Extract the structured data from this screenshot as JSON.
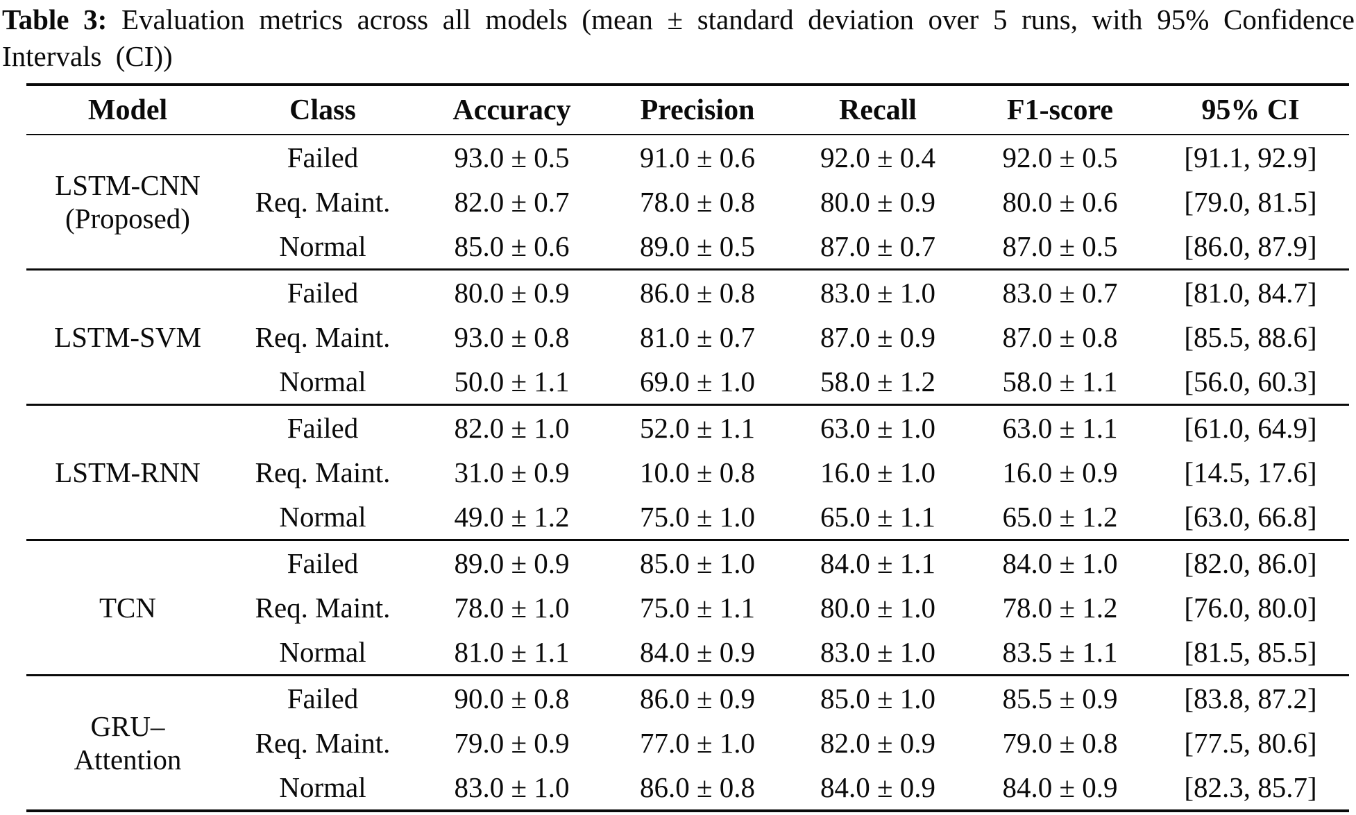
{
  "caption": {
    "label": "Table 3:",
    "text": "Evaluation metrics across all models (mean ± standard deviation over 5 runs, with 95% Confidence Intervals (CI))"
  },
  "table": {
    "columns": [
      "Model",
      "Class",
      "Accuracy",
      "Precision",
      "Recall",
      "F1-score",
      "95% CI"
    ],
    "row_fields": [
      "class",
      "accuracy",
      "precision",
      "recall",
      "f1",
      "ci"
    ],
    "groups": [
      {
        "model_lines": [
          "LSTM-CNN",
          "(Proposed)"
        ],
        "rows": [
          {
            "class": "Failed",
            "accuracy": "93.0 ± 0.5",
            "precision": "91.0 ± 0.6",
            "recall": "92.0 ± 0.4",
            "f1": "92.0 ± 0.5",
            "ci": "[91.1, 92.9]"
          },
          {
            "class": "Req. Maint.",
            "accuracy": "82.0 ± 0.7",
            "precision": "78.0 ± 0.8",
            "recall": "80.0 ± 0.9",
            "f1": "80.0 ± 0.6",
            "ci": "[79.0, 81.5]"
          },
          {
            "class": "Normal",
            "accuracy": "85.0 ± 0.6",
            "precision": "89.0 ± 0.5",
            "recall": "87.0 ± 0.7",
            "f1": "87.0 ± 0.5",
            "ci": "[86.0, 87.9]"
          }
        ]
      },
      {
        "model_lines": [
          "LSTM-SVM"
        ],
        "rows": [
          {
            "class": "Failed",
            "accuracy": "80.0 ± 0.9",
            "precision": "86.0 ± 0.8",
            "recall": "83.0 ± 1.0",
            "f1": "83.0 ± 0.7",
            "ci": "[81.0, 84.7]"
          },
          {
            "class": "Req. Maint.",
            "accuracy": "93.0 ± 0.8",
            "precision": "81.0 ± 0.7",
            "recall": "87.0 ± 0.9",
            "f1": "87.0 ± 0.8",
            "ci": "[85.5, 88.6]"
          },
          {
            "class": "Normal",
            "accuracy": "50.0 ± 1.1",
            "precision": "69.0 ± 1.0",
            "recall": "58.0 ± 1.2",
            "f1": "58.0 ± 1.1",
            "ci": "[56.0, 60.3]"
          }
        ]
      },
      {
        "model_lines": [
          "LSTM-RNN"
        ],
        "rows": [
          {
            "class": "Failed",
            "accuracy": "82.0 ± 1.0",
            "precision": "52.0 ± 1.1",
            "recall": "63.0 ± 1.0",
            "f1": "63.0 ± 1.1",
            "ci": "[61.0, 64.9]"
          },
          {
            "class": "Req. Maint.",
            "accuracy": "31.0 ± 0.9",
            "precision": "10.0 ± 0.8",
            "recall": "16.0 ± 1.0",
            "f1": "16.0 ± 0.9",
            "ci": "[14.5, 17.6]"
          },
          {
            "class": "Normal",
            "accuracy": "49.0 ± 1.2",
            "precision": "75.0 ± 1.0",
            "recall": "65.0 ± 1.1",
            "f1": "65.0 ± 1.2",
            "ci": "[63.0, 66.8]"
          }
        ]
      },
      {
        "model_lines": [
          "TCN"
        ],
        "rows": [
          {
            "class": "Failed",
            "accuracy": "89.0 ± 0.9",
            "precision": "85.0 ± 1.0",
            "recall": "84.0 ± 1.1",
            "f1": "84.0 ± 1.0",
            "ci": "[82.0, 86.0]"
          },
          {
            "class": "Req. Maint.",
            "accuracy": "78.0 ± 1.0",
            "precision": "75.0 ± 1.1",
            "recall": "80.0 ± 1.0",
            "f1": "78.0 ± 1.2",
            "ci": "[76.0, 80.0]"
          },
          {
            "class": "Normal",
            "accuracy": "81.0 ± 1.1",
            "precision": "84.0 ± 0.9",
            "recall": "83.0 ± 1.0",
            "f1": "83.5 ± 1.1",
            "ci": "[81.5, 85.5]"
          }
        ]
      },
      {
        "model_lines": [
          "GRU–",
          "Attention"
        ],
        "rows": [
          {
            "class": "Failed",
            "accuracy": "90.0 ± 0.8",
            "precision": "86.0 ± 0.9",
            "recall": "85.0 ± 1.0",
            "f1": "85.5 ± 0.9",
            "ci": "[83.8, 87.2]"
          },
          {
            "class": "Req. Maint.",
            "accuracy": "79.0 ± 0.9",
            "precision": "77.0 ± 1.0",
            "recall": "82.0 ± 0.9",
            "f1": "79.0 ± 0.8",
            "ci": "[77.5, 80.6]"
          },
          {
            "class": "Normal",
            "accuracy": "83.0 ± 1.0",
            "precision": "86.0 ± 0.8",
            "recall": "84.0 ± 0.9",
            "f1": "84.0 ± 0.9",
            "ci": "[82.3, 85.7]"
          }
        ]
      }
    ]
  }
}
